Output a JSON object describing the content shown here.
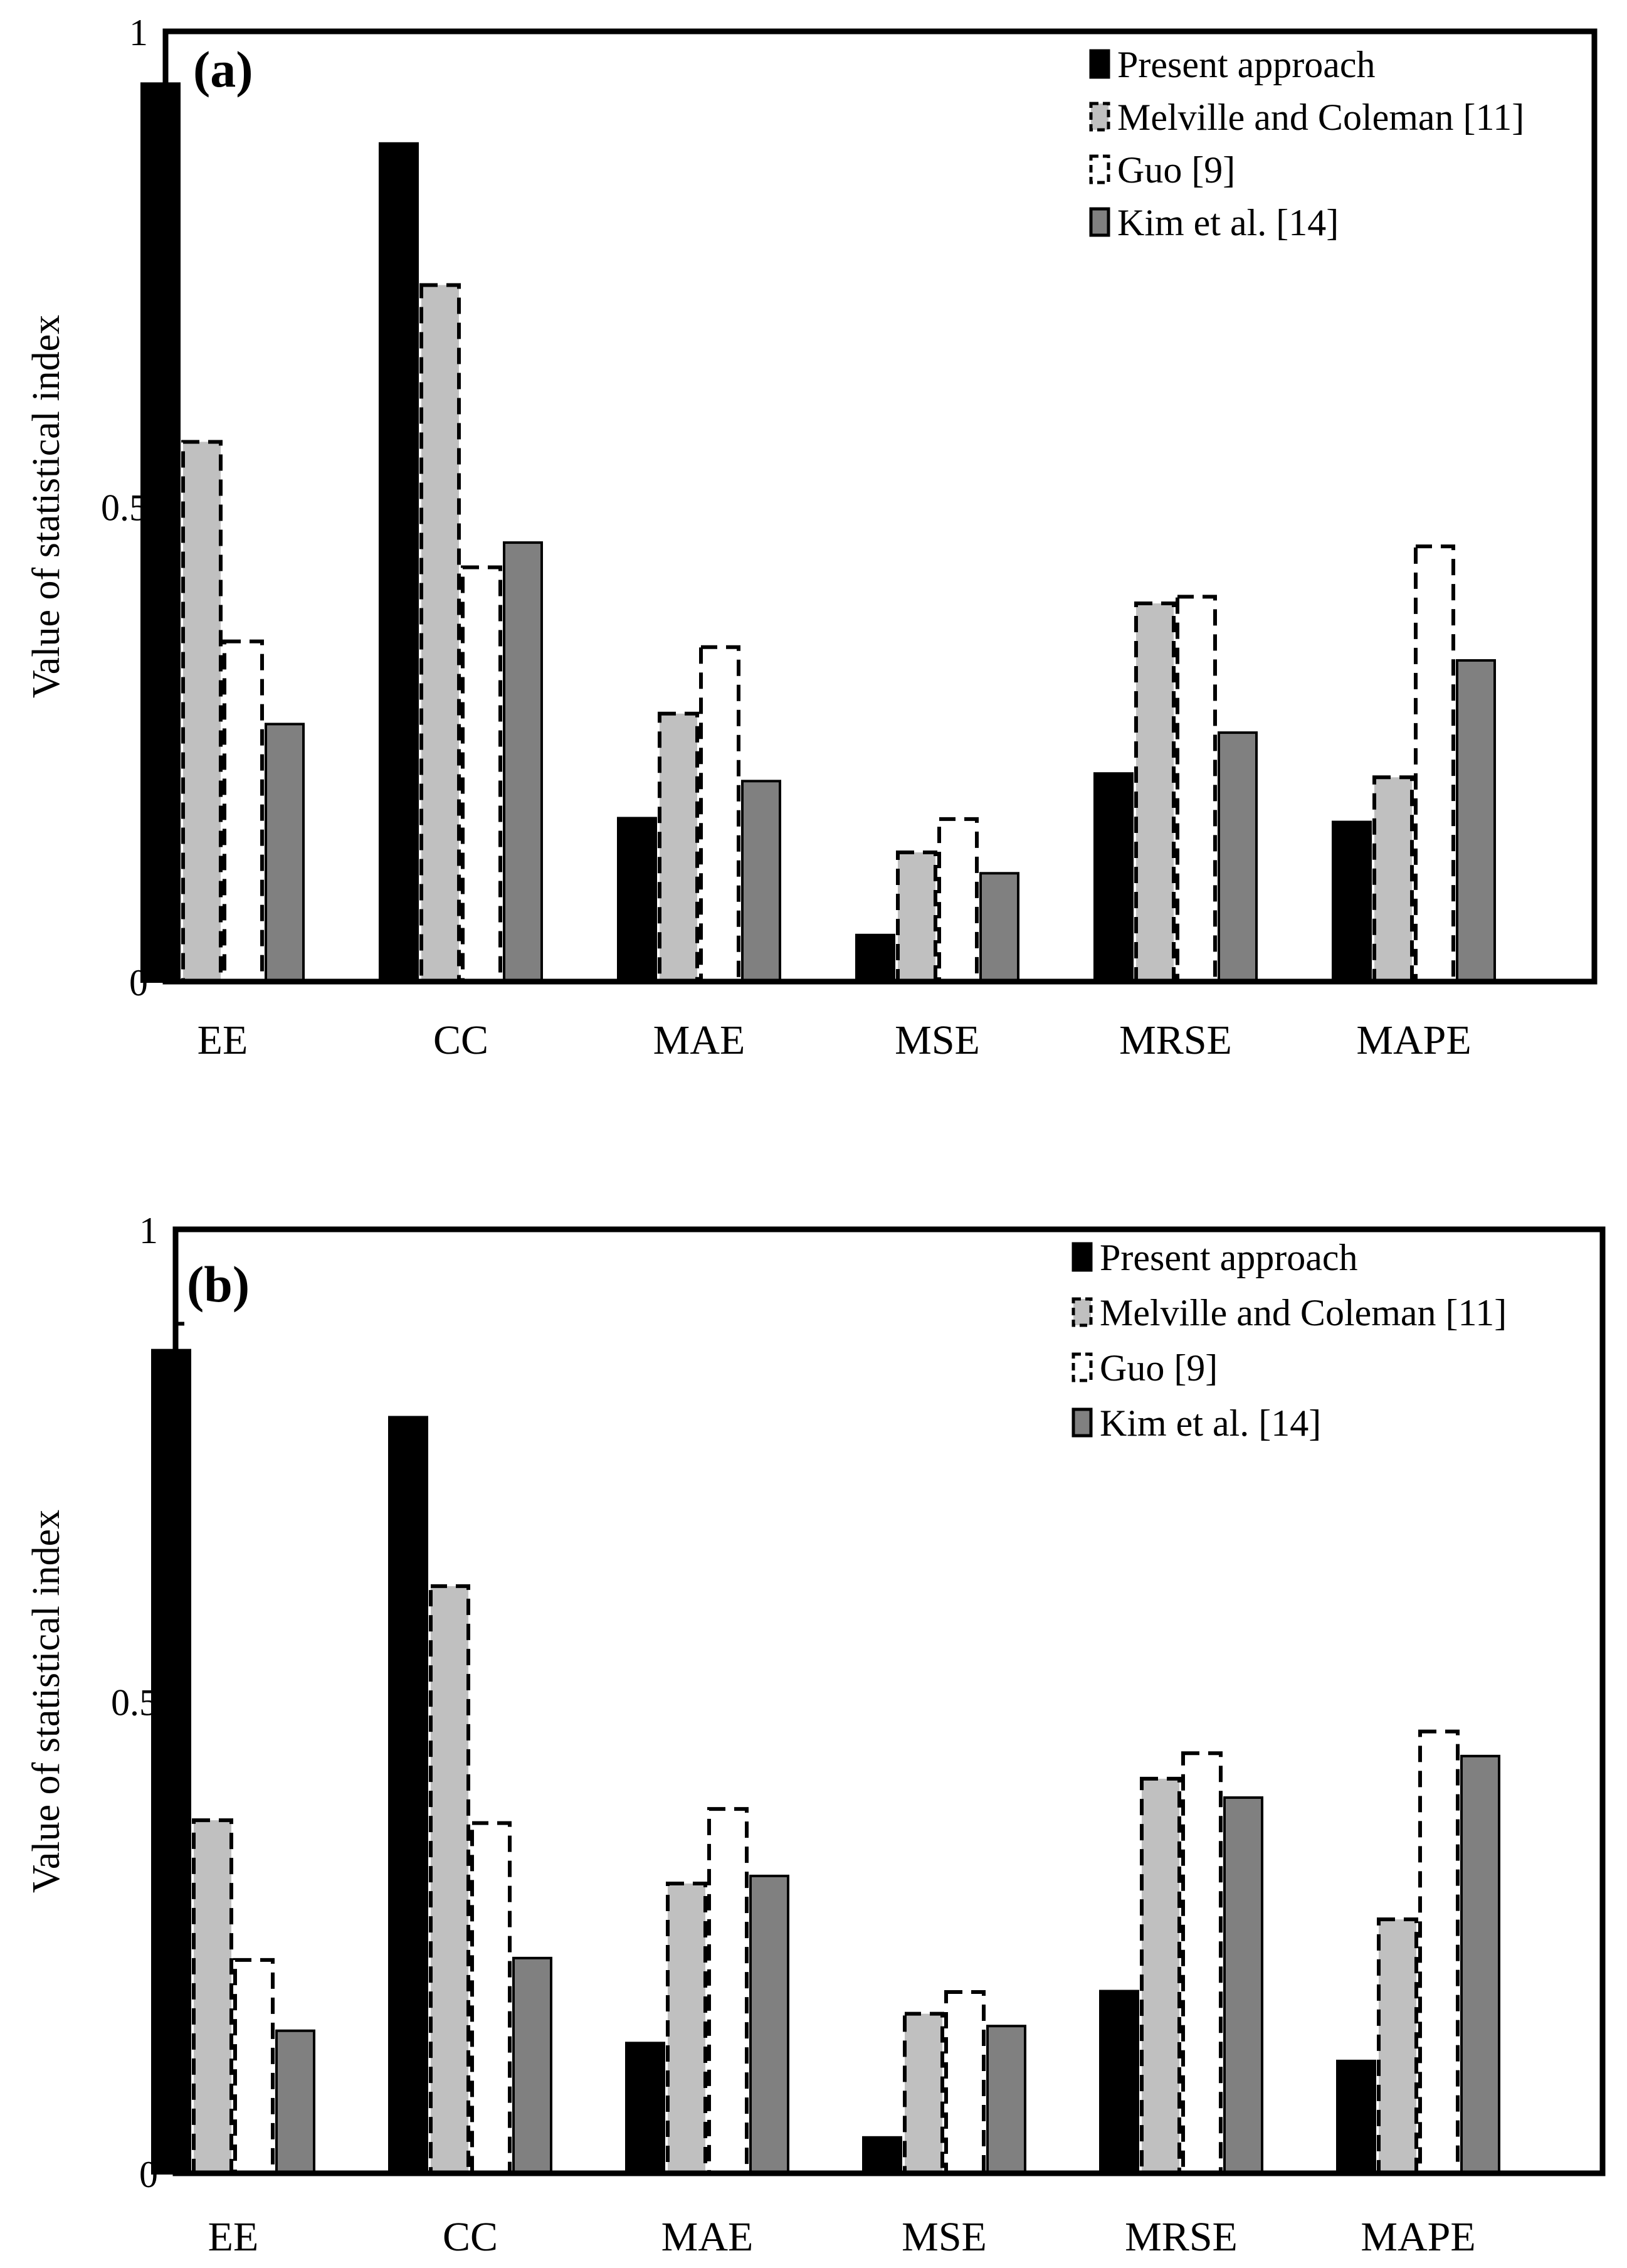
{
  "chart_data": [
    {
      "type": "bar",
      "panel_label": "(a)",
      "categories": [
        "EE",
        "CC",
        "MAE",
        "MSE",
        "MRSE",
        "MAPE"
      ],
      "ylabel": "Value of statistical index",
      "xlabel": "",
      "ylim": [
        0,
        1
      ],
      "y_ticks": [
        0,
        0.5,
        1
      ],
      "y_tick_labels": [
        "0",
        "0.5",
        "1"
      ],
      "legend_position": "top-right",
      "series": [
        {
          "name": "Present approach",
          "style": "solid-black",
          "values": [
            0.945,
            0.882,
            0.172,
            0.049,
            0.219,
            0.168
          ]
        },
        {
          "name": "Melville and Coleman [11]",
          "style": "dashed-light-gray",
          "values": [
            0.568,
            0.733,
            0.282,
            0.136,
            0.398,
            0.215
          ]
        },
        {
          "name": "Guo [9]",
          "style": "dashed-white",
          "values": [
            0.358,
            0.436,
            0.352,
            0.171,
            0.405,
            0.458
          ]
        },
        {
          "name": "Kim et al. [14]",
          "style": "solid-dark-gray",
          "values": [
            0.271,
            0.462,
            0.211,
            0.114,
            0.262,
            0.338
          ]
        }
      ]
    },
    {
      "type": "bar",
      "panel_label": "(b)",
      "categories": [
        "EE",
        "CC",
        "MAE",
        "MSE",
        "MRSE",
        "MAPE"
      ],
      "ylabel": "Value of statistical index",
      "xlabel": "",
      "ylim": [
        0,
        1
      ],
      "y_ticks": [
        0,
        0.5,
        1
      ],
      "y_tick_labels": [
        "0",
        "0.5",
        "1"
      ],
      "legend_position": "top-right",
      "series": [
        {
          "name": "Present approach",
          "style": "solid-black",
          "values": [
            0.872,
            0.801,
            0.138,
            0.038,
            0.193,
            0.119
          ]
        },
        {
          "name": "Melville and Coleman [11]",
          "style": "dashed-light-gray",
          "values": [
            0.374,
            0.622,
            0.307,
            0.169,
            0.418,
            0.269
          ]
        },
        {
          "name": "Guo [9]",
          "style": "dashed-white",
          "values": [
            0.226,
            0.371,
            0.386,
            0.192,
            0.445,
            0.468
          ]
        },
        {
          "name": "Kim et al. [14]",
          "style": "solid-dark-gray",
          "values": [
            0.151,
            0.228,
            0.315,
            0.156,
            0.398,
            0.442
          ]
        }
      ]
    }
  ],
  "colors": {
    "solid-black": "#000000",
    "dashed-light-gray": "#c0c0c0",
    "dashed-white": "#ffffff",
    "solid-dark-gray": "#808080",
    "axis": "#000000",
    "background": "#ffffff"
  }
}
